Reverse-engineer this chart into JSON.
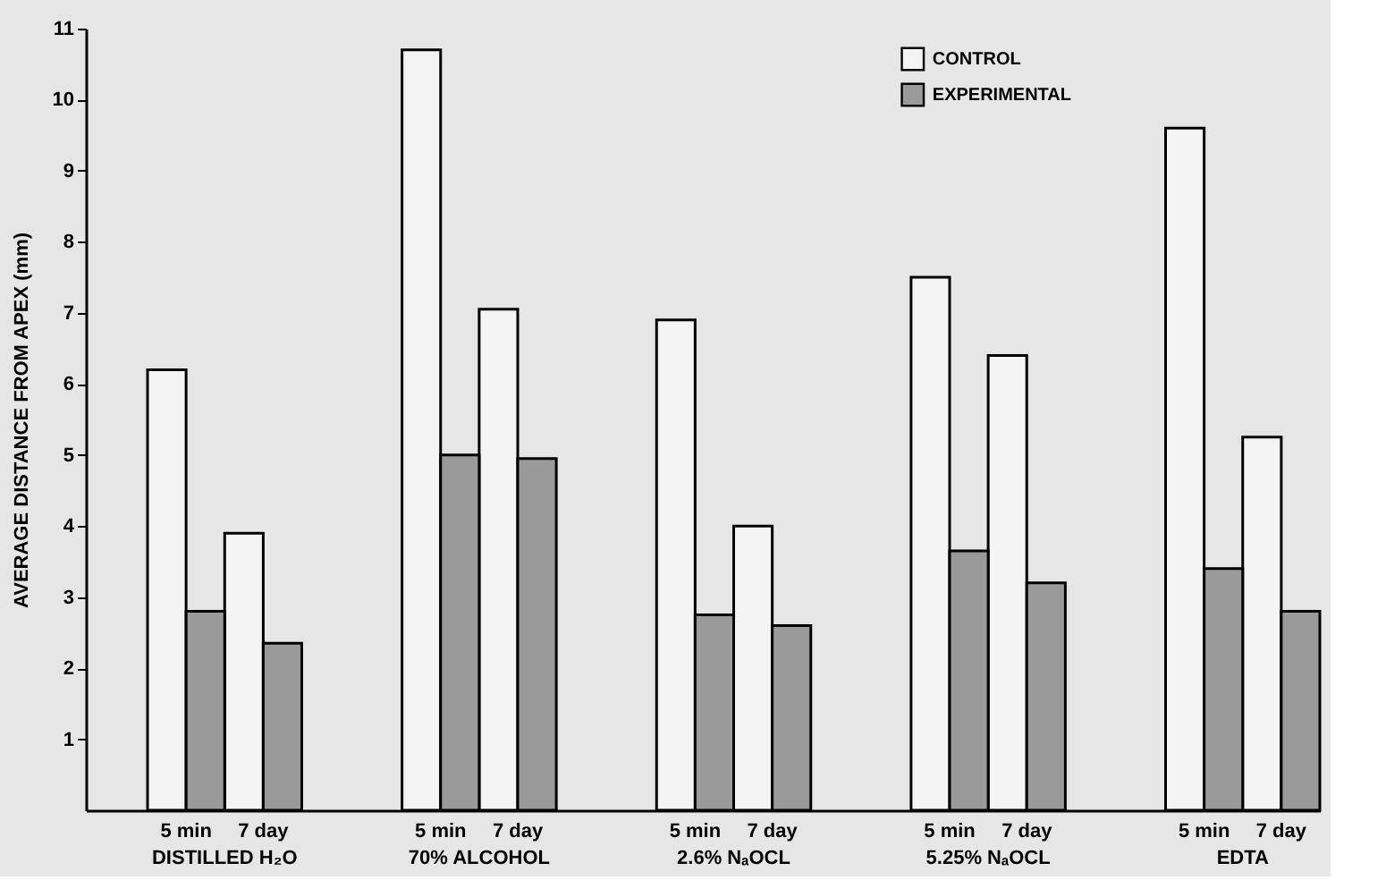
{
  "chart_data": {
    "type": "bar",
    "ylabel": "AVERAGE DISTANCE FROM APEX (mm)",
    "categories": [
      "5 min",
      "7 day",
      "5 min",
      "7 day",
      "5 min",
      "7 day",
      "5 min",
      "7 day",
      "5 min",
      "7 day"
    ],
    "series": [
      {
        "name": "CONTROL",
        "color": "#f4f4f4",
        "values": [
          6.2,
          3.9,
          10.7,
          7.05,
          6.9,
          4.0,
          7.5,
          6.4,
          9.6,
          5.25
        ]
      },
      {
        "name": "EXPERIMENTAL",
        "color": "#9a9a9a",
        "values": [
          2.8,
          2.35,
          5.0,
          4.95,
          2.75,
          2.6,
          3.65,
          3.2,
          3.4,
          2.8
        ]
      }
    ],
    "annotations": [
      "DISTILLED H₂O",
      "70% ALCOHOL",
      "2.6% NₐOCL",
      "5.25% NₐOCL",
      "EDTA"
    ],
    "ylim": [
      0,
      11
    ],
    "yticks": [
      1,
      2,
      3,
      4,
      5,
      6,
      7,
      8,
      9,
      10,
      11
    ],
    "grid": false,
    "legend": "top right"
  }
}
